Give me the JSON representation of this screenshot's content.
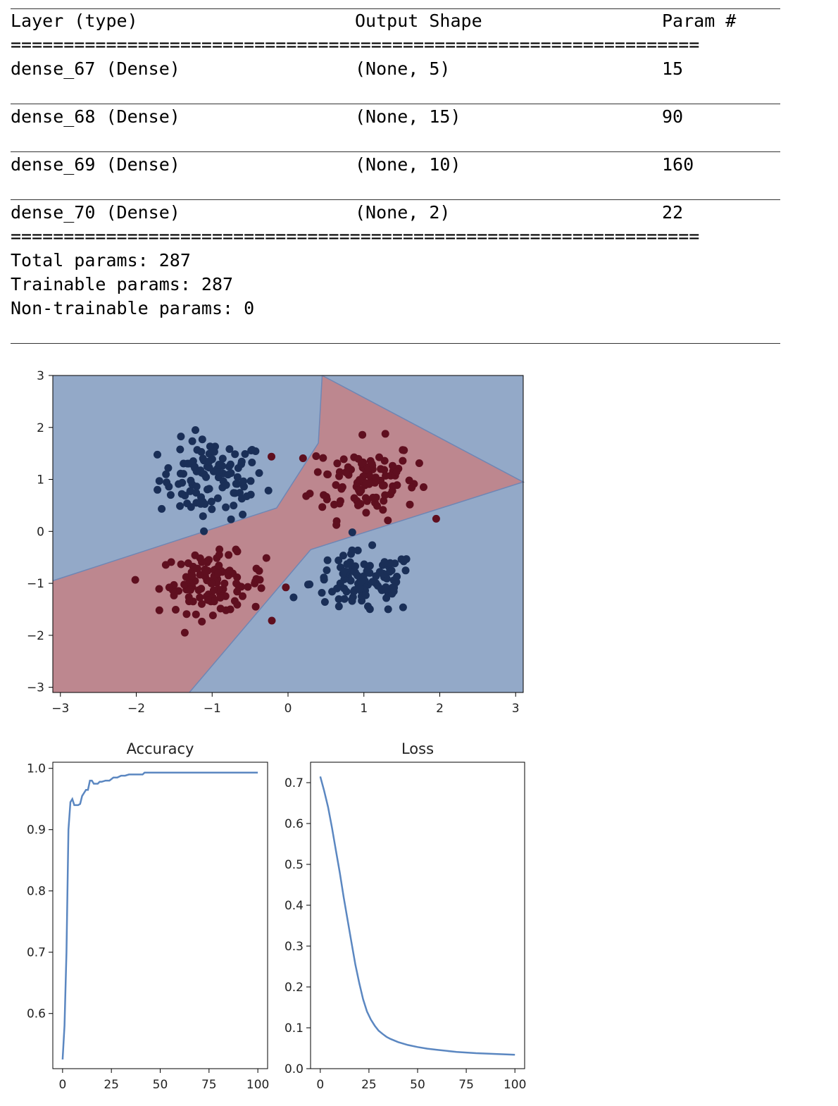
{
  "summary": {
    "headers": [
      "Layer (type)",
      "Output Shape",
      "Param #"
    ],
    "eq_line": "=================================================================",
    "rows": [
      {
        "layer": "dense_67 (Dense)",
        "shape": "(None, 5)",
        "params": "15"
      },
      {
        "layer": "dense_68 (Dense)",
        "shape": "(None, 15)",
        "params": "90"
      },
      {
        "layer": "dense_69 (Dense)",
        "shape": "(None, 10)",
        "params": "160"
      },
      {
        "layer": "dense_70 (Dense)",
        "shape": "(None, 2)",
        "params": "22"
      }
    ],
    "total": "Total params: 287",
    "trainable": "Trainable params: 287",
    "non_trainable": "Non-trainable params: 0"
  },
  "chart_data": [
    {
      "type": "scatter",
      "title": "",
      "xlabel": "",
      "ylabel": "",
      "xlim": [
        -3.1,
        3.1
      ],
      "ylim": [
        -3.1,
        3.0
      ],
      "xticks": [
        "−3",
        "−2",
        "−1",
        "0",
        "1",
        "2",
        "3"
      ],
      "yticks": [
        "3",
        "2",
        "1",
        "0",
        "−1",
        "−2",
        "−3"
      ],
      "colors": {
        "class0_region": "#93a9c8",
        "class1_region": "#bd878f",
        "class0_point": "#1a2f57",
        "class1_point": "#5f0f1f",
        "boundary": "#6f86b4"
      },
      "decision_boundary": [
        [
          -3.1,
          -0.95
        ],
        [
          -0.15,
          0.45
        ],
        [
          0.4,
          1.7
        ],
        [
          0.45,
          3.0
        ],
        [
          3.1,
          0.95
        ],
        [
          0.3,
          -0.35
        ],
        [
          -1.3,
          -3.1
        ]
      ],
      "clusters": [
        {
          "class": 0,
          "center": [
            -1.0,
            1.0
          ],
          "spread": [
            0.35,
            0.38
          ],
          "count": 110
        },
        {
          "class": 1,
          "center": [
            1.0,
            1.0
          ],
          "spread": [
            0.35,
            0.38
          ],
          "count": 110
        },
        {
          "class": 1,
          "center": [
            -1.0,
            -1.0
          ],
          "spread": [
            0.35,
            0.28
          ],
          "count": 110
        },
        {
          "class": 0,
          "center": [
            1.0,
            -1.0
          ],
          "spread": [
            0.35,
            0.3
          ],
          "count": 110
        }
      ]
    },
    {
      "type": "line",
      "title": "Accuracy",
      "xlabel": "",
      "ylabel": "",
      "xlim": [
        -5,
        105
      ],
      "ylim": [
        0.51,
        1.01
      ],
      "xticks": [
        "0",
        "25",
        "50",
        "75",
        "100"
      ],
      "yticks": [
        "1.0",
        "0.9",
        "0.8",
        "0.7",
        "0.6"
      ],
      "line_color": "#5b87c1",
      "x": [
        0,
        1,
        2,
        3,
        4,
        5,
        6,
        7,
        8,
        9,
        10,
        11,
        12,
        13,
        14,
        15,
        16,
        18,
        19,
        20,
        22,
        24,
        26,
        28,
        30,
        32,
        34,
        36,
        38,
        40,
        41,
        42,
        44,
        50,
        60,
        70,
        80,
        90,
        100
      ],
      "y": [
        0.525,
        0.58,
        0.7,
        0.9,
        0.945,
        0.95,
        0.94,
        0.94,
        0.94,
        0.942,
        0.955,
        0.96,
        0.965,
        0.965,
        0.98,
        0.98,
        0.975,
        0.975,
        0.978,
        0.978,
        0.98,
        0.98,
        0.985,
        0.985,
        0.988,
        0.988,
        0.99,
        0.99,
        0.99,
        0.99,
        0.99,
        0.993,
        0.993,
        0.993,
        0.993,
        0.993,
        0.993,
        0.993,
        0.993
      ]
    },
    {
      "type": "line",
      "title": "Loss",
      "xlabel": "",
      "ylabel": "",
      "xlim": [
        -5,
        105
      ],
      "ylim": [
        0.0,
        0.75
      ],
      "xticks": [
        "0",
        "25",
        "50",
        "75",
        "100"
      ],
      "yticks": [
        "0.7",
        "0.6",
        "0.5",
        "0.4",
        "0.3",
        "0.2",
        "0.1",
        "0.0"
      ],
      "line_color": "#5b87c1",
      "x": [
        0,
        2,
        4,
        6,
        8,
        10,
        12,
        14,
        16,
        18,
        20,
        22,
        24,
        26,
        28,
        30,
        32,
        34,
        36,
        40,
        45,
        50,
        55,
        60,
        70,
        80,
        90,
        100
      ],
      "y": [
        0.715,
        0.68,
        0.64,
        0.59,
        0.535,
        0.48,
        0.42,
        0.365,
        0.31,
        0.255,
        0.21,
        0.17,
        0.14,
        0.12,
        0.105,
        0.093,
        0.085,
        0.078,
        0.073,
        0.065,
        0.058,
        0.053,
        0.049,
        0.046,
        0.041,
        0.038,
        0.036,
        0.034
      ]
    }
  ]
}
